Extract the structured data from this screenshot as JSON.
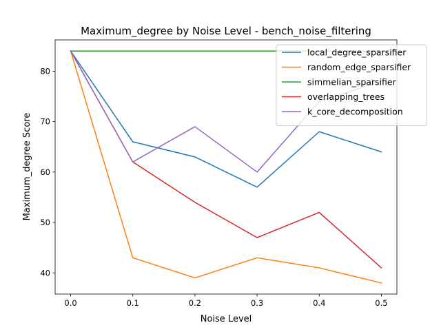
{
  "chart_data": {
    "type": "line",
    "title": "Maximum_degree by Noise Level - bench_noise_filtering",
    "xlabel": "Noise Level",
    "ylabel": "Maximum_degree Score",
    "x": [
      0.0,
      0.1,
      0.2,
      0.3,
      0.4,
      0.5
    ],
    "x_tick_labels": [
      "0.0",
      "0.1",
      "0.2",
      "0.3",
      "0.4",
      "0.5"
    ],
    "y_ticks": [
      40,
      50,
      60,
      70,
      80
    ],
    "xlim": [
      -0.025,
      0.525
    ],
    "ylim": [
      35.8,
      86.2
    ],
    "grid": false,
    "legend_position": "top-right",
    "series": [
      {
        "name": "local_degree_sparsifier",
        "color": "#1f77b4",
        "values": [
          84,
          66,
          63,
          57,
          68,
          64
        ]
      },
      {
        "name": "random_edge_sparsifier",
        "color": "#ff7f0e",
        "values": [
          84,
          43,
          39,
          43,
          41,
          38
        ]
      },
      {
        "name": "simmelian_sparsifier",
        "color": "#2ca02c",
        "values": [
          84,
          84,
          84,
          84,
          84,
          84
        ]
      },
      {
        "name": "overlapping_trees",
        "color": "#d62728",
        "values": [
          84,
          62,
          54,
          47,
          52,
          41
        ]
      },
      {
        "name": "k_core_decomposition",
        "color": "#9467bd",
        "values": [
          84,
          62,
          69,
          60,
          74,
          78
        ]
      }
    ]
  }
}
